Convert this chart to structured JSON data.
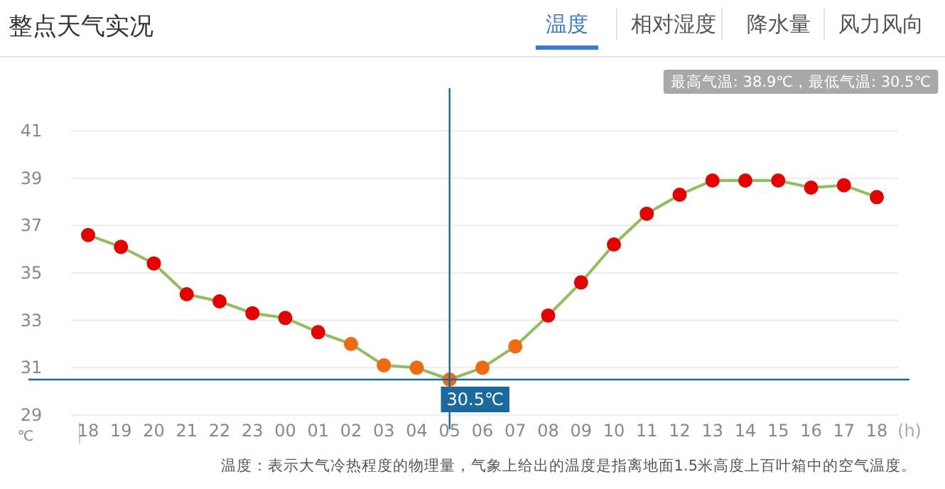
{
  "chart_data": {
    "type": "line",
    "title": "整点天气实况",
    "subtitle": "最高气温: 38.9℃，最低气温: 30.5℃",
    "xlabel": "(h)",
    "ylabel": "℃",
    "categories": [
      "18",
      "19",
      "20",
      "21",
      "22",
      "23",
      "00",
      "01",
      "02",
      "03",
      "04",
      "05",
      "06",
      "07",
      "08",
      "09",
      "10",
      "11",
      "12",
      "13",
      "14",
      "15",
      "16",
      "17",
      "18"
    ],
    "series": [
      {
        "color": "#8fbf5a",
        "values": [
          36.6,
          36.1,
          35.4,
          34.1,
          33.8,
          33.3,
          33.1,
          32.5,
          32.0,
          31.1,
          31.0,
          30.5,
          31.0,
          31.9,
          33.2,
          34.6,
          36.2,
          37.5,
          38.3,
          38.9,
          38.9,
          38.9,
          38.6,
          38.7,
          38.2
        ],
        "colors": [
          "#e60000",
          "#e60000",
          "#e60000",
          "#e60000",
          "#e60000",
          "#e60000",
          "#e60000",
          "#e60000",
          "#f06a0f",
          "#f06a0f",
          "#f06a0f",
          "#f06a0f",
          "#f06a0f",
          "#f06a0f",
          "#e60000",
          "#e60000",
          "#e60000",
          "#e60000",
          "#e60000",
          "#e60000",
          "#e60000",
          "#e60000",
          "#e60000",
          "#e60000",
          "#e60000"
        ]
      }
    ],
    "ylim": [
      29,
      41
    ],
    "yticks": [
      29,
      31,
      33,
      35,
      37,
      39,
      41
    ],
    "grid": "y",
    "marker": "circle",
    "line_style": "solid",
    "ref_lines": [
      {
        "axis": "y",
        "value": 30.5,
        "color": "#1a6aa0"
      },
      {
        "axis": "x",
        "value": "05",
        "color": "#1a6aa0"
      }
    ],
    "annotations": [
      "温度",
      "相对湿度",
      "降水量",
      "风力风向",
      "温度：表示大气冷热程度的物理量，气象上给出的温度是指离地面1.5米高度上百叶箱中的空气温度。",
      {
        "text": "30.5℃",
        "x": "05",
        "y": 30.5
      }
    ]
  }
}
